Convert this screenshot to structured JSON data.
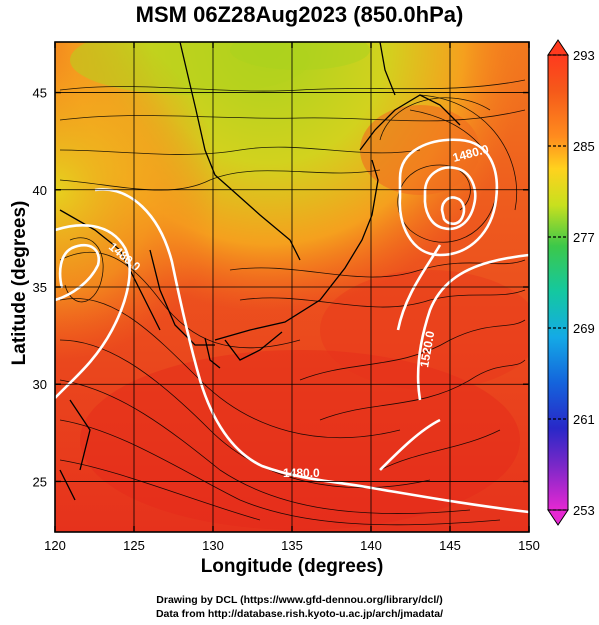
{
  "title": "MSM 06Z28Aug2023 (850.0hPa)",
  "xlabel": "Longitude (degrees)",
  "ylabel": "Latitude  (degrees)",
  "x_ticks": [
    "120",
    "125",
    "130",
    "135",
    "140",
    "145",
    "150"
  ],
  "y_ticks": [
    "25",
    "30",
    "35",
    "40",
    "45"
  ],
  "x_range": [
    120,
    150
  ],
  "y_range": [
    22.4,
    47.6
  ],
  "colorbar": {
    "labels": [
      "293",
      "285",
      "277",
      "269",
      "261",
      "253"
    ],
    "range": [
      253,
      293
    ],
    "unit_label": ""
  },
  "contour_labels": [
    "1480.0",
    "1480.0",
    "1520.0",
    "1480.0"
  ],
  "credit_lines": [
    "Drawing by DCL (https://www.gfd-dennou.org/library/dcl/)",
    "Data from http://database.rish.kyoto-u.ac.jp/arch/jmadata/"
  ],
  "colors": {
    "warm_dominant": "#e8341c",
    "north_green": "#9ec81e",
    "contour": "#ffffff",
    "streamline": "#000000"
  }
}
